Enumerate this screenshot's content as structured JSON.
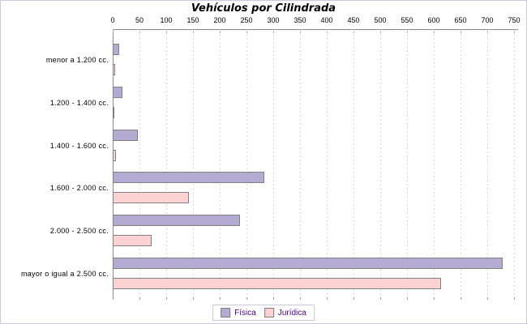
{
  "frame": {
    "background": "#ffffff",
    "border_color": "#c9c9e0"
  },
  "chart_data": {
    "type": "bar",
    "orientation": "horizontal",
    "title": "Vehículos por Cilindrada",
    "categories": [
      "menor a 1.200 cc.",
      "1.200 - 1.400 cc.",
      "1.400 - 1.600 cc.",
      "1.600 - 2.000 cc.",
      "2.000 - 2.500 cc.",
      "mayor o igual a 2.500 cc."
    ],
    "series": [
      {
        "name": "Física",
        "color": "#b4aad2",
        "values": [
          12,
          18,
          47,
          284,
          238,
          729
        ]
      },
      {
        "name": "Jurídica",
        "color": "#fcd2d2",
        "values": [
          4,
          3,
          6,
          143,
          73,
          613
        ]
      }
    ],
    "x_axis": {
      "min": 0,
      "max": 750,
      "tick_interval": 50,
      "position": "top",
      "tick_labels": [
        "0",
        "50",
        "100",
        "150",
        "200",
        "250",
        "300",
        "350",
        "400",
        "450",
        "500",
        "550",
        "600",
        "650",
        "700",
        "750"
      ]
    },
    "grid": "vertical-dashed",
    "gridline_color": "#d9d9d9",
    "axis_color": "#8a8a8a",
    "bar_border_color": "#808080",
    "legend_position": "bottom",
    "legend": {
      "text_color": "#4b0082",
      "border_color": "#c8c8d8"
    }
  }
}
